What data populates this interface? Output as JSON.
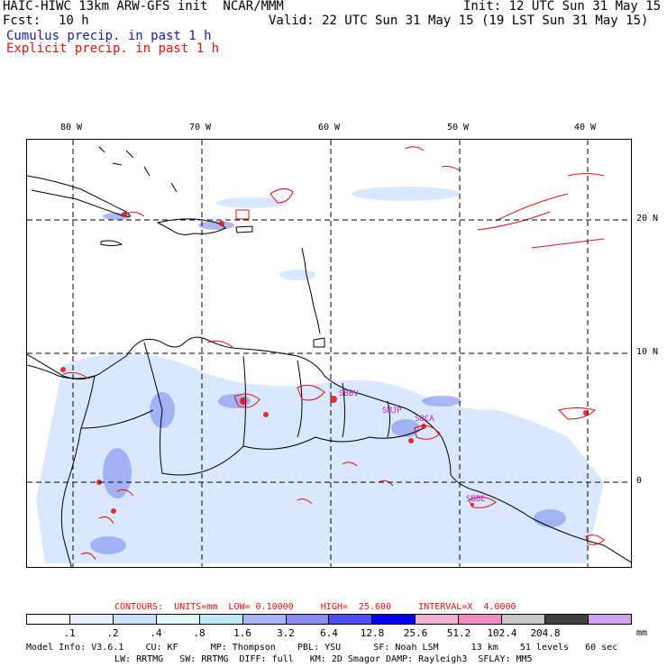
{
  "header": {
    "line1_left": "HAIC-HIWC 13km ARW-GFS init  NCAR/MMM",
    "line1_right": "Init: 12 UTC Sun 31 May 15",
    "fcst_label": "Fcst:",
    "fcst_value": "10 h",
    "valid": "Valid: 22 UTC Sun 31 May 15 (19 LST Sun 31 May 15)",
    "cumulus": "Cumulus precip. in past 1 h",
    "explicit": "Explicit precip. in past 1 h"
  },
  "map": {
    "lon_labels": [
      "80 W",
      "70 W",
      "60 W",
      "50 W",
      "40 W"
    ],
    "lat_labels": [
      "20 N",
      "10 N",
      "0"
    ],
    "stations": [
      "SBBV",
      "SMJP",
      "SOCA",
      "SBBE"
    ],
    "colors": {
      "coast": "#000000",
      "explicit": "#e01010",
      "grid": "#000000"
    }
  },
  "footer": {
    "contours": "CONTOURS:  UNITS=mm  LOW= 0.10000     HIGH=  25.600     INTERVAL=X  4.0000",
    "colorbar_labels": [
      ".1",
      ".2",
      ".4",
      ".8",
      "1.6",
      "3.2",
      "6.4",
      "12.8",
      "25.6",
      "51.2",
      "102.4",
      "204.8"
    ],
    "colorbar_colors": [
      "#ffffff",
      "#e6f0ff",
      "#cce0ff",
      "#e0f8f8",
      "#bfe9f5",
      "#a7b7f5",
      "#8c8cf0",
      "#5050f0",
      "#0000f0",
      "#f0b4d2",
      "#f08cbf",
      "#c8c8c8",
      "#404040",
      "#d2a0f0"
    ],
    "units": "mm",
    "info1": "Model Info: V3.6.1    CU: KF      MP: Thompson    PBL: YSU      SF: Noah LSM      13 km    51 levels   60 sec",
    "info2": "LW: RRTMG   SW: RRTMG  DIFF: full   KM: 2D Smagor DAMP: Rayleigh3  SFLAY: MM5"
  }
}
